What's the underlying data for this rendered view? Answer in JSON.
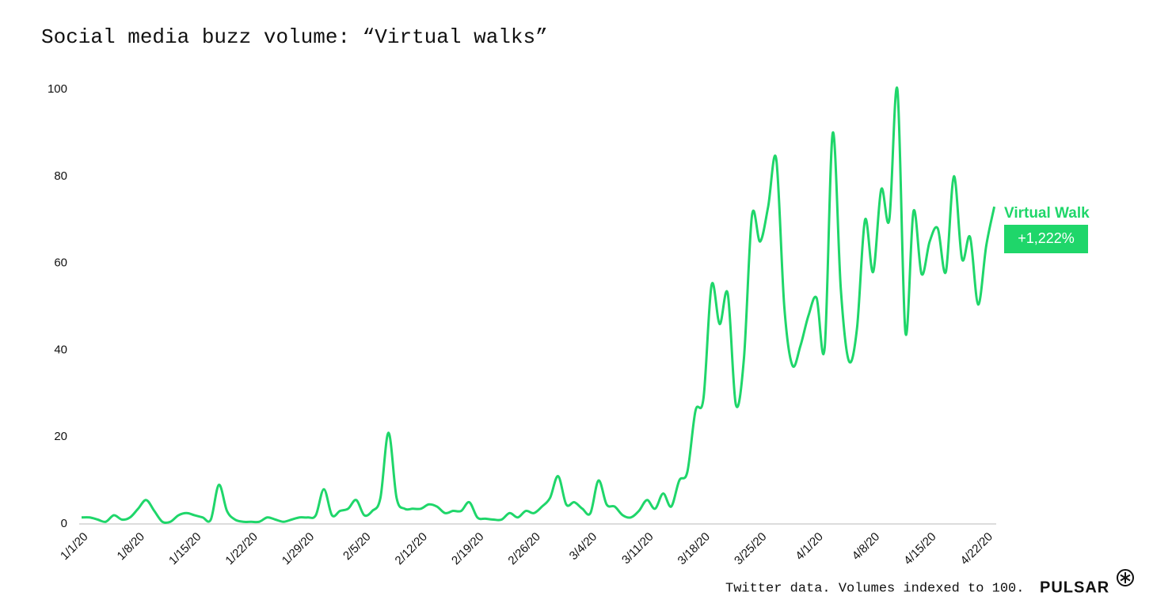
{
  "chart_data": {
    "type": "line",
    "title": "Social media buzz volume: “Virtual walks”",
    "categories": [
      "1/1/20",
      null,
      null,
      null,
      null,
      null,
      null,
      "1/8/20",
      null,
      null,
      null,
      null,
      null,
      null,
      "1/15/20",
      null,
      null,
      null,
      null,
      null,
      null,
      "1/22/20",
      null,
      null,
      null,
      null,
      null,
      null,
      "1/29/20",
      null,
      null,
      null,
      null,
      null,
      null,
      "2/5/20",
      null,
      null,
      null,
      null,
      null,
      null,
      "2/12/20",
      null,
      null,
      null,
      null,
      null,
      null,
      "2/19/20",
      null,
      null,
      null,
      null,
      null,
      null,
      "2/26/20",
      null,
      null,
      null,
      null,
      null,
      null,
      "3/4/20",
      null,
      null,
      null,
      null,
      null,
      null,
      "3/11/20",
      null,
      null,
      null,
      null,
      null,
      null,
      "3/18/20",
      null,
      null,
      null,
      null,
      null,
      null,
      "3/25/20",
      null,
      null,
      null,
      null,
      null,
      null,
      "4/1/20",
      null,
      null,
      null,
      null,
      null,
      null,
      "4/8/20",
      null,
      null,
      null,
      null,
      null,
      null,
      "4/15/20",
      null,
      null,
      null,
      null,
      null,
      null,
      "4/22/20",
      null
    ],
    "series": [
      {
        "name": "Virtual Walk",
        "color": "#1fd66a",
        "values": [
          1.5,
          1.5,
          1,
          0.5,
          2,
          1,
          1.5,
          3.5,
          5.5,
          3,
          0.5,
          0.5,
          2,
          2.5,
          2,
          1.5,
          1,
          9,
          3,
          1,
          0.5,
          0.5,
          0.5,
          1.5,
          1,
          0.5,
          1,
          1.5,
          1.5,
          2,
          8,
          2,
          3,
          3.5,
          5.5,
          2,
          3,
          6,
          21,
          6,
          3.5,
          3.5,
          3.5,
          4.5,
          4,
          2.5,
          3,
          3,
          5,
          1.5,
          1.2,
          1,
          1,
          2.5,
          1.5,
          3,
          2.5,
          4,
          6,
          11,
          4.5,
          5,
          3.5,
          2.5,
          10,
          4.5,
          4,
          2,
          1.5,
          3,
          5.5,
          3.5,
          7,
          4,
          10,
          12,
          26,
          29,
          55,
          46,
          53,
          27.5,
          38,
          71,
          65,
          73,
          84,
          50,
          36.5,
          41,
          48,
          52,
          40.5,
          90,
          54,
          37.5,
          45,
          70,
          58,
          77,
          70,
          100,
          44,
          72,
          57.5,
          65,
          68,
          58,
          80,
          61,
          66,
          50.5,
          64,
          73
        ]
      }
    ],
    "annotation": "+1,222%",
    "ylim": [
      0,
      100
    ],
    "yticks": [
      0,
      20,
      40,
      60,
      80,
      100
    ],
    "grid": false,
    "note": "Twitter data. Volumes indexed to 100.",
    "brand": "PULSAR"
  }
}
